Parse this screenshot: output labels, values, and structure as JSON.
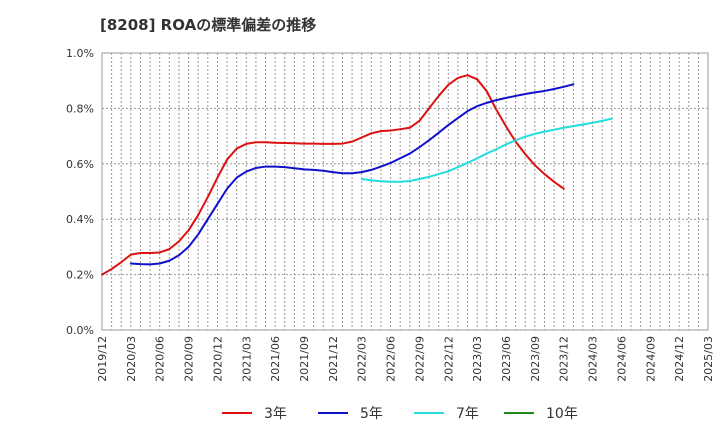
{
  "chart_data": {
    "type": "line",
    "title": "[8208]  ROAの標準偏差の推移",
    "xlabel": "",
    "ylabel": "",
    "ylim": [
      0,
      1.0
    ],
    "yticks": [
      0,
      0.2,
      0.4,
      0.6,
      0.8,
      1.0
    ],
    "ytick_labels": [
      "0.0%",
      "0.2%",
      "0.4%",
      "0.6%",
      "0.8%",
      "1.0%"
    ],
    "xtick_labels": [
      "2019/12",
      "2020/03",
      "2020/06",
      "2020/09",
      "2020/12",
      "2021/03",
      "2021/06",
      "2021/09",
      "2021/12",
      "2022/03",
      "2022/06",
      "2022/09",
      "2022/12",
      "2023/03",
      "2023/06",
      "2023/09",
      "2023/12",
      "2024/03",
      "2024/06",
      "2024/09",
      "2024/12",
      "2025/03"
    ],
    "grid": true,
    "legend_position": "bottom",
    "series": [
      {
        "name": "3年",
        "color": "#dd1111",
        "start": "2019/12",
        "values": [
          0.2,
          0.22,
          0.245,
          0.272,
          0.278,
          0.278,
          0.28,
          0.292,
          0.32,
          0.36,
          0.415,
          0.48,
          0.55,
          0.615,
          0.655,
          0.672,
          0.678,
          0.678,
          0.676,
          0.675,
          0.674,
          0.673,
          0.673,
          0.672,
          0.672,
          0.673,
          0.68,
          0.695,
          0.71,
          0.718,
          0.72,
          0.725,
          0.73,
          0.755,
          0.8,
          0.845,
          0.885,
          0.91,
          0.92,
          0.905,
          0.862,
          0.795,
          0.735,
          0.68,
          0.635,
          0.595,
          0.563,
          0.535,
          0.51
        ]
      },
      {
        "name": "5年",
        "color": "#1111cc",
        "start": "2020/03",
        "values": [
          0.24,
          0.238,
          0.237,
          0.24,
          0.25,
          0.27,
          0.3,
          0.345,
          0.4,
          0.455,
          0.51,
          0.55,
          0.572,
          0.585,
          0.59,
          0.59,
          0.588,
          0.584,
          0.58,
          0.578,
          0.575,
          0.57,
          0.566,
          0.566,
          0.57,
          0.578,
          0.59,
          0.603,
          0.62,
          0.637,
          0.66,
          0.685,
          0.712,
          0.74,
          0.765,
          0.79,
          0.808,
          0.82,
          0.83,
          0.838,
          0.845,
          0.852,
          0.858,
          0.863,
          0.87,
          0.878,
          0.887
        ]
      },
      {
        "name": "7年",
        "color": "#22dddd",
        "start": "2022/03",
        "values": [
          0.545,
          0.54,
          0.537,
          0.535,
          0.535,
          0.538,
          0.545,
          0.553,
          0.563,
          0.573,
          0.588,
          0.603,
          0.62,
          0.637,
          0.653,
          0.67,
          0.685,
          0.698,
          0.708,
          0.716,
          0.723,
          0.73,
          0.736,
          0.742,
          0.748,
          0.755,
          0.763
        ]
      },
      {
        "name": "10年",
        "color": "#228822",
        "start": "",
        "values": []
      }
    ]
  }
}
